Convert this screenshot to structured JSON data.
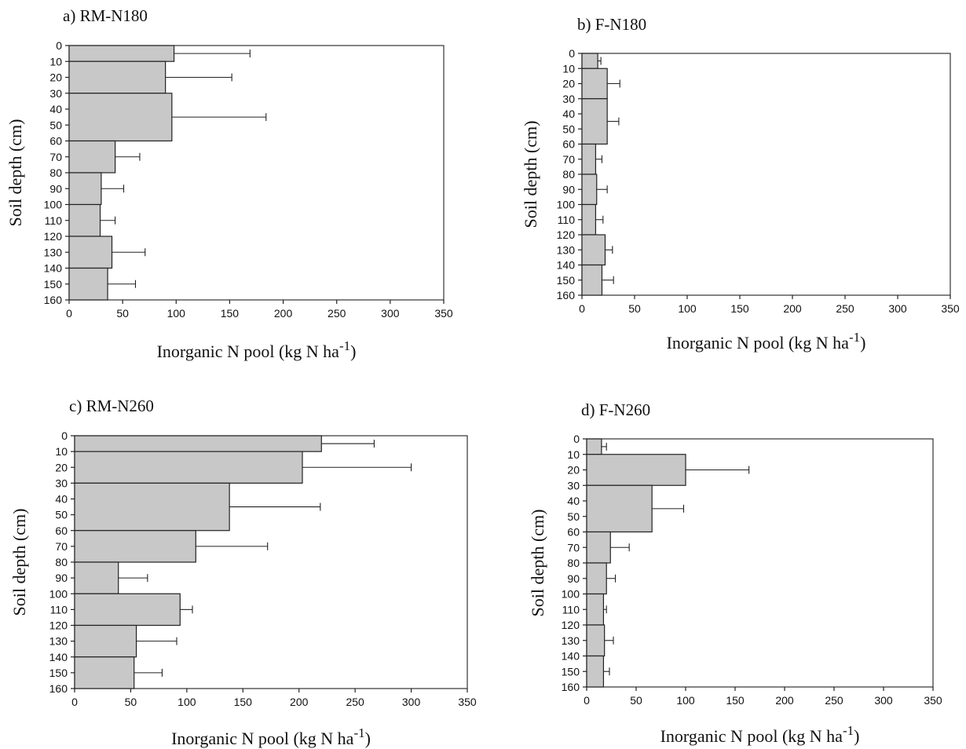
{
  "colors": {
    "bar_fill": "#c8c8c8",
    "bar_stroke": "#222222",
    "frame": "#333333"
  },
  "chart_data": [
    {
      "type": "bar",
      "orientation": "horizontal",
      "title": "a) RM-N180",
      "xlabel": "Inorganic N pool (kg N ha-1)",
      "ylabel": "Soil depth (cm)",
      "xlim": [
        0,
        350
      ],
      "ylim": [
        0,
        160
      ],
      "y_inverted": true,
      "xticks": [
        0,
        50,
        100,
        150,
        200,
        250,
        300,
        350
      ],
      "yticks": [
        0,
        10,
        20,
        30,
        40,
        50,
        60,
        70,
        80,
        90,
        100,
        110,
        120,
        130,
        140,
        150,
        160
      ],
      "layers": [
        {
          "top": 0,
          "bottom": 10,
          "value": 98,
          "error": 71
        },
        {
          "top": 10,
          "bottom": 30,
          "value": 90,
          "error": 62
        },
        {
          "top": 30,
          "bottom": 60,
          "value": 96,
          "error": 88
        },
        {
          "top": 60,
          "bottom": 80,
          "value": 43,
          "error": 23
        },
        {
          "top": 80,
          "bottom": 100,
          "value": 30,
          "error": 21
        },
        {
          "top": 100,
          "bottom": 120,
          "value": 29,
          "error": 14
        },
        {
          "top": 120,
          "bottom": 140,
          "value": 40,
          "error": 31
        },
        {
          "top": 140,
          "bottom": 160,
          "value": 36,
          "error": 26
        }
      ]
    },
    {
      "type": "bar",
      "orientation": "horizontal",
      "title": "b) F-N180",
      "xlabel": "Inorganic N pool (kg N ha-1)",
      "ylabel": "Soil depth (cm)",
      "xlim": [
        0,
        350
      ],
      "ylim": [
        0,
        160
      ],
      "y_inverted": true,
      "xticks": [
        0,
        50,
        100,
        150,
        200,
        250,
        300,
        350
      ],
      "yticks": [
        0,
        10,
        20,
        30,
        40,
        50,
        60,
        70,
        80,
        90,
        100,
        110,
        120,
        130,
        140,
        150,
        160
      ],
      "layers": [
        {
          "top": 0,
          "bottom": 10,
          "value": 15,
          "error": 3
        },
        {
          "top": 10,
          "bottom": 30,
          "value": 24,
          "error": 12
        },
        {
          "top": 30,
          "bottom": 60,
          "value": 24,
          "error": 11
        },
        {
          "top": 60,
          "bottom": 80,
          "value": 13,
          "error": 6
        },
        {
          "top": 80,
          "bottom": 100,
          "value": 14,
          "error": 10
        },
        {
          "top": 100,
          "bottom": 120,
          "value": 13,
          "error": 7
        },
        {
          "top": 120,
          "bottom": 140,
          "value": 22,
          "error": 7
        },
        {
          "top": 140,
          "bottom": 160,
          "value": 19,
          "error": 11
        }
      ]
    },
    {
      "type": "bar",
      "orientation": "horizontal",
      "title": "c) RM-N260",
      "xlabel": "Inorganic N pool (kg N ha-1)",
      "ylabel": "Soil depth (cm)",
      "xlim": [
        0,
        350
      ],
      "ylim": [
        0,
        160
      ],
      "y_inverted": true,
      "xticks": [
        0,
        50,
        100,
        150,
        200,
        250,
        300,
        350
      ],
      "yticks": [
        0,
        10,
        20,
        30,
        40,
        50,
        60,
        70,
        80,
        90,
        100,
        110,
        120,
        130,
        140,
        150,
        160
      ],
      "layers": [
        {
          "top": 0,
          "bottom": 10,
          "value": 220,
          "error": 47
        },
        {
          "top": 10,
          "bottom": 30,
          "value": 203,
          "error": 97
        },
        {
          "top": 30,
          "bottom": 60,
          "value": 138,
          "error": 81
        },
        {
          "top": 60,
          "bottom": 80,
          "value": 108,
          "error": 64
        },
        {
          "top": 80,
          "bottom": 100,
          "value": 39,
          "error": 26
        },
        {
          "top": 100,
          "bottom": 120,
          "value": 94,
          "error": 11
        },
        {
          "top": 120,
          "bottom": 140,
          "value": 55,
          "error": 36
        },
        {
          "top": 140,
          "bottom": 160,
          "value": 53,
          "error": 25
        }
      ]
    },
    {
      "type": "bar",
      "orientation": "horizontal",
      "title": "d) F-N260",
      "xlabel": "Inorganic N pool (kg N ha-1)",
      "ylabel": "Soil depth (cm)",
      "xlim": [
        0,
        350
      ],
      "ylim": [
        0,
        160
      ],
      "y_inverted": true,
      "xticks": [
        0,
        50,
        100,
        150,
        200,
        250,
        300,
        350
      ],
      "yticks": [
        0,
        10,
        20,
        30,
        40,
        50,
        60,
        70,
        80,
        90,
        100,
        110,
        120,
        130,
        140,
        150,
        160
      ],
      "layers": [
        {
          "top": 0,
          "bottom": 10,
          "value": 15,
          "error": 5
        },
        {
          "top": 10,
          "bottom": 30,
          "value": 100,
          "error": 64
        },
        {
          "top": 30,
          "bottom": 60,
          "value": 66,
          "error": 32
        },
        {
          "top": 60,
          "bottom": 80,
          "value": 24,
          "error": 19
        },
        {
          "top": 80,
          "bottom": 100,
          "value": 20,
          "error": 9
        },
        {
          "top": 100,
          "bottom": 120,
          "value": 17,
          "error": 3
        },
        {
          "top": 120,
          "bottom": 140,
          "value": 18,
          "error": 9
        },
        {
          "top": 140,
          "bottom": 160,
          "value": 17,
          "error": 6
        }
      ]
    }
  ]
}
